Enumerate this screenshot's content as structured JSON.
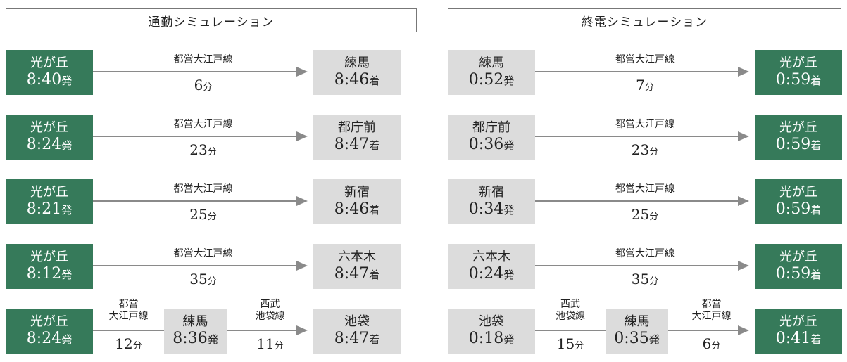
{
  "colors": {
    "depart_green": "#367a5a",
    "station_gray": "#dcdcdc",
    "arrow": "#8a8a8a"
  },
  "commute": {
    "title": "通勤シミュレーション",
    "rows": [
      {
        "from": "光が丘",
        "from_time": "8:40",
        "from_suffix": "発",
        "line": "都営大江戸線",
        "minutes": "6",
        "unit": "分",
        "to": "練馬",
        "to_time": "8:46",
        "to_suffix": "着"
      },
      {
        "from": "光が丘",
        "from_time": "8:24",
        "from_suffix": "発",
        "line": "都営大江戸線",
        "minutes": "23",
        "unit": "分",
        "to": "都庁前",
        "to_time": "8:47",
        "to_suffix": "着"
      },
      {
        "from": "光が丘",
        "from_time": "8:21",
        "from_suffix": "発",
        "line": "都営大江戸線",
        "minutes": "25",
        "unit": "分",
        "to": "新宿",
        "to_time": "8:46",
        "to_suffix": "着"
      },
      {
        "from": "光が丘",
        "from_time": "8:12",
        "from_suffix": "発",
        "line": "都営大江戸線",
        "minutes": "35",
        "unit": "分",
        "to": "六本木",
        "to_time": "8:47",
        "to_suffix": "着"
      }
    ],
    "transfer": {
      "from": "光が丘",
      "from_time": "8:24",
      "from_suffix": "発",
      "line1_a": "都営",
      "line1_b": "大江戸線",
      "minutes1": "12",
      "unit": "分",
      "via": "練馬",
      "via_time": "8:36",
      "via_suffix": "発",
      "line2_a": "西武",
      "line2_b": "池袋線",
      "minutes2": "11",
      "to": "池袋",
      "to_time": "8:47",
      "to_suffix": "着"
    }
  },
  "last_train": {
    "title": "終電シミュレーション",
    "rows": [
      {
        "from": "練馬",
        "from_time": "0:52",
        "from_suffix": "発",
        "line": "都営大江戸線",
        "minutes": "7",
        "unit": "分",
        "to": "光が丘",
        "to_time": "0:59",
        "to_suffix": "着"
      },
      {
        "from": "都庁前",
        "from_time": "0:36",
        "from_suffix": "発",
        "line": "都営大江戸線",
        "minutes": "23",
        "unit": "分",
        "to": "光が丘",
        "to_time": "0:59",
        "to_suffix": "着"
      },
      {
        "from": "新宿",
        "from_time": "0:34",
        "from_suffix": "発",
        "line": "都営大江戸線",
        "minutes": "25",
        "unit": "分",
        "to": "光が丘",
        "to_time": "0:59",
        "to_suffix": "着"
      },
      {
        "from": "六本木",
        "from_time": "0:24",
        "from_suffix": "発",
        "line": "都営大江戸線",
        "minutes": "35",
        "unit": "分",
        "to": "光が丘",
        "to_time": "0:59",
        "to_suffix": "着"
      }
    ],
    "transfer": {
      "from": "池袋",
      "from_time": "0:18",
      "from_suffix": "発",
      "line1_a": "西武",
      "line1_b": "池袋線",
      "minutes1": "15",
      "unit": "分",
      "via": "練馬",
      "via_time": "0:35",
      "via_suffix": "発",
      "line2_a": "都営",
      "line2_b": "大江戸線",
      "minutes2": "6",
      "to": "光が丘",
      "to_time": "0:41",
      "to_suffix": "着"
    }
  }
}
